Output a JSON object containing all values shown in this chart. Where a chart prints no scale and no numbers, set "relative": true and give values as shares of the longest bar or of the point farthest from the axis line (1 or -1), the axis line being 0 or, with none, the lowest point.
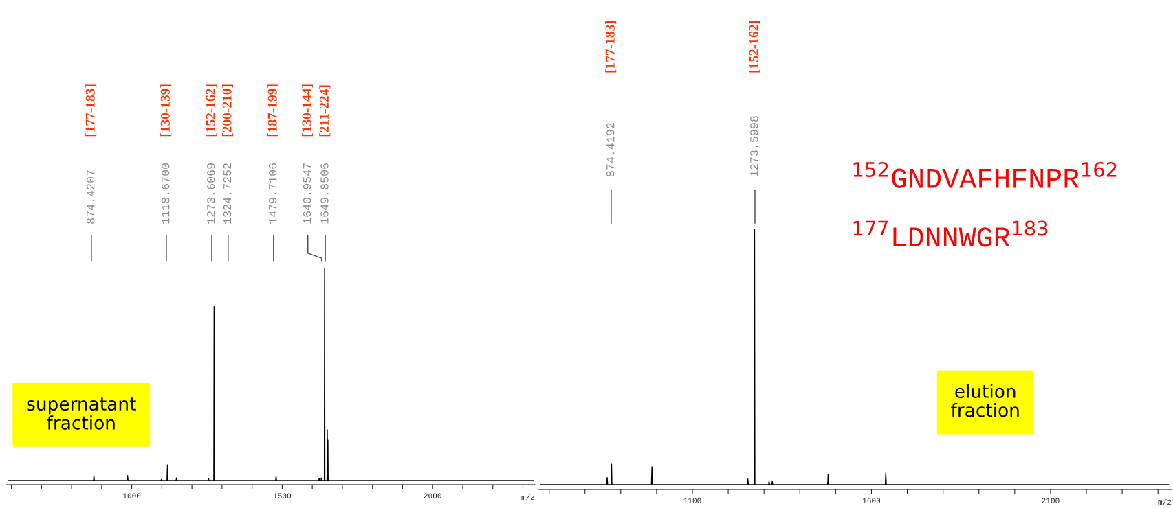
{
  "chart_data": [
    {
      "type": "line",
      "relative": true,
      "xlabel": "m/z",
      "tick_labels": "x",
      "xlim": [
        585,
        2340
      ],
      "xticks": [
        {
          "value": 600,
          "label": null
        },
        {
          "value": 700,
          "label": null
        },
        {
          "value": 800,
          "label": null
        },
        {
          "value": 900,
          "label": null
        },
        1000,
        {
          "value": 1100,
          "label": null
        },
        {
          "value": 1200,
          "label": null
        },
        {
          "value": 1300,
          "label": null
        },
        {
          "value": 1400,
          "label": null
        },
        1500,
        {
          "value": 1600,
          "label": null
        },
        {
          "value": 1700,
          "label": null
        },
        {
          "value": 1800,
          "label": null
        },
        {
          "value": 1900,
          "label": null
        },
        2000,
        {
          "value": 2100,
          "label": null
        },
        {
          "value": 2200,
          "label": null
        },
        {
          "value": 2300,
          "label": null
        }
      ],
      "x": [
        590,
        872.9,
        874.4207,
        875.9,
        984,
        986,
        988,
        1097,
        1099,
        1101,
        1117,
        1118.67,
        1120,
        1147,
        1149,
        1151,
        1253,
        1255,
        1257,
        1272.6,
        1273.6069,
        1274.6,
        1324.7252,
        1478,
        1479.7106,
        1481,
        1621.5,
        1623,
        1624.5,
        1629,
        1630,
        1631,
        1639.9,
        1640.9547,
        1641.9,
        1648.9,
        1649.8506,
        1650.9,
        1651.4,
        1652,
        1652.8,
        2335
      ],
      "series": [
        {
          "color": "#000000",
          "values": [
            0,
            0,
            0.023,
            0,
            0,
            0.024,
            0,
            0,
            0.006,
            0,
            0,
            0.074,
            0,
            0,
            0.013,
            0,
            0,
            0.01,
            0,
            0,
            0.82,
            0,
            0,
            0,
            0.02,
            0,
            0,
            0.01,
            0,
            0,
            0.012,
            0,
            0,
            1.0,
            0,
            0,
            0.24,
            0,
            0,
            0.19,
            0,
            0
          ]
        }
      ],
      "annotations": [
        "874.4207",
        "[177-183]",
        "1118.6700",
        "[130-139]",
        "1273.6069",
        "[152-162]",
        "1324.7252",
        "[200-210]",
        "1479.7106",
        "[187-199]",
        "1640.9547",
        "[130-144]",
        "1649.8506",
        "[211-224]",
        "supernatant\nfraction"
      ]
    },
    {
      "type": "line",
      "relative": true,
      "xlabel": "m/z",
      "tick_labels": "x",
      "xlim": [
        670,
        2438
      ],
      "xticks": [
        {
          "value": 700,
          "label": null
        },
        {
          "value": 800,
          "label": null
        },
        {
          "value": 900,
          "label": null
        },
        {
          "value": 1000,
          "label": null
        },
        1100,
        {
          "value": 1200,
          "label": null
        },
        {
          "value": 1300,
          "label": null
        },
        {
          "value": 1400,
          "label": null
        },
        {
          "value": 1500,
          "label": null
        },
        1600,
        {
          "value": 1700,
          "label": null
        },
        {
          "value": 1800,
          "label": null
        },
        {
          "value": 1900,
          "label": null
        },
        {
          "value": 2000,
          "label": null
        },
        2100,
        {
          "value": 2200,
          "label": null
        },
        {
          "value": 2300,
          "label": null
        },
        {
          "value": 2400,
          "label": null
        }
      ],
      "x": [
        675,
        860.5,
        862,
        863.5,
        873.4,
        874.4192,
        875.4,
        985.5,
        987,
        988.5,
        1253.5,
        1255,
        1256.5,
        1272.6,
        1273.5998,
        1274.6,
        1312.5,
        1314,
        1315.5,
        1321.5,
        1323,
        1324.5,
        1477.5,
        1479,
        1480.5,
        1638.5,
        1640,
        1641.5,
        2430
      ],
      "series": [
        {
          "color": "#000000",
          "values": [
            0,
            0,
            0.028,
            0,
            0,
            0.08,
            0,
            0,
            0.07,
            0,
            0,
            0.022,
            0,
            0,
            1.0,
            0,
            0,
            0.013,
            0,
            0,
            0.013,
            0,
            0,
            0.041,
            0,
            0,
            0.046,
            0,
            0
          ]
        }
      ],
      "annotations": [
        "874.4192",
        "[177-183]",
        "1273.5998",
        "[152-162]",
        "$^{152}$GNDVAFHFNPR$^{162}$",
        "$^{177}$LDNNWGR$^{183}$",
        "elution\nfraction"
      ]
    }
  ]
}
